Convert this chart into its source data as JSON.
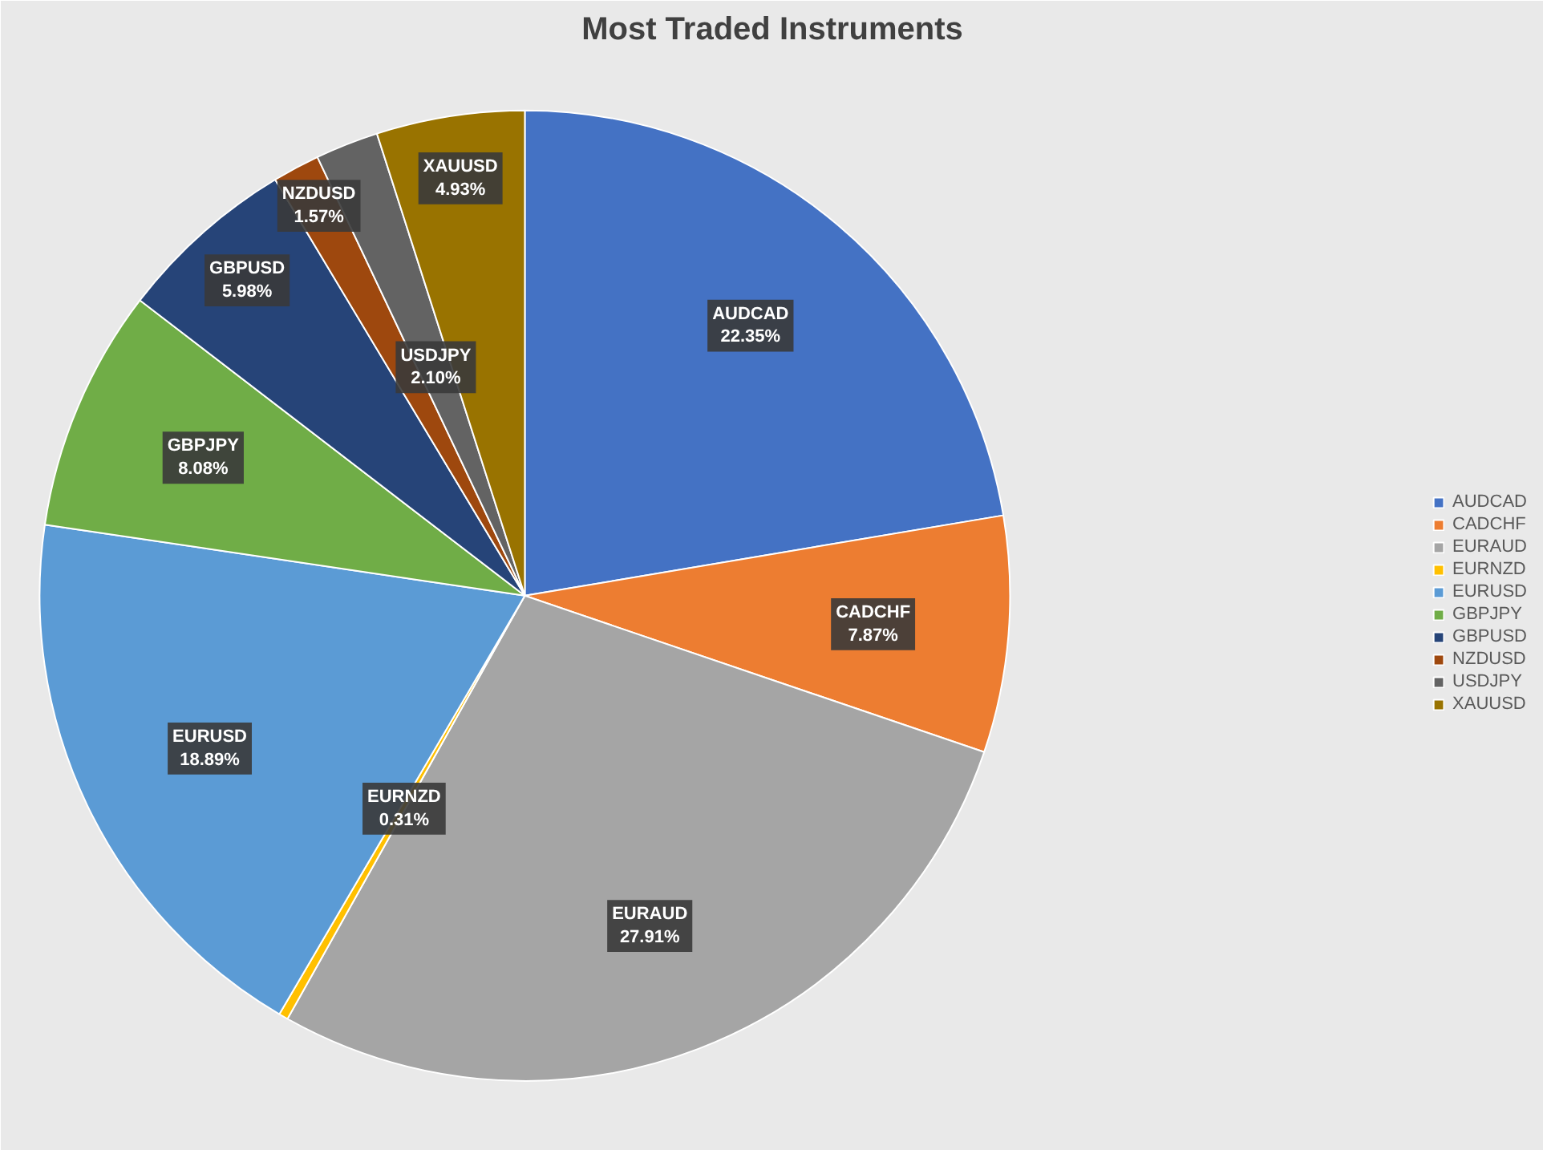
{
  "chart_data": {
    "type": "pie",
    "title": "Most Traded Instruments",
    "categories": [
      "AUDCAD",
      "CADCHF",
      "EURAUD",
      "EURNZD",
      "EURUSD",
      "GBPJPY",
      "GBPUSD",
      "NZDUSD",
      "USDJPY",
      "XAUUSD"
    ],
    "values": [
      22.35,
      7.87,
      27.91,
      0.31,
      18.89,
      8.08,
      5.98,
      1.57,
      2.1,
      4.93
    ],
    "colors": [
      "#4472c4",
      "#ed7d31",
      "#a5a5a5",
      "#ffc000",
      "#5b9bd5",
      "#70ad47",
      "#264478",
      "#9e480e",
      "#636363",
      "#997300"
    ],
    "value_labels": [
      "22.35%",
      "7.87%",
      "27.91%",
      "0.31%",
      "18.89%",
      "8.08%",
      "5.98%",
      "1.57%",
      "2.10%",
      "4.93%"
    ],
    "legend": "right"
  }
}
